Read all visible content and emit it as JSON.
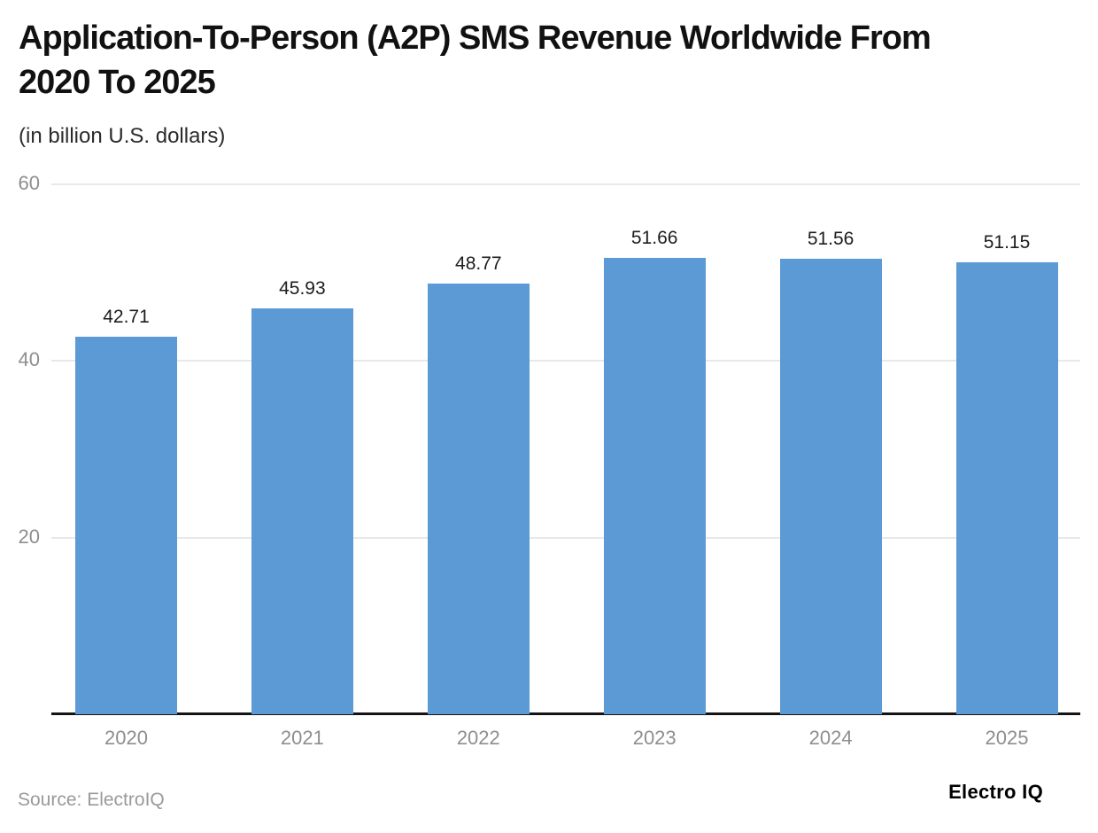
{
  "header": {
    "title_lines": [
      "Application-To-Person (A2P) SMS Revenue Worldwide From",
      "2020 To 2025"
    ]
  },
  "footer": {
    "source": "Source: ElectroIQ",
    "brand": "Electro IQ"
  },
  "chart_data": {
    "type": "bar",
    "title": "Application-To-Person (A2P) SMS Revenue Worldwide From 2020 To 2025",
    "subtitle": "(in billion U.S. dollars)",
    "categories": [
      "2020",
      "2021",
      "2022",
      "2023",
      "2024",
      "2025"
    ],
    "values": [
      42.71,
      45.93,
      48.77,
      51.66,
      51.56,
      51.15
    ],
    "xlabel": "",
    "ylabel": "",
    "ylim": [
      0,
      60
    ],
    "yticks": [
      20,
      40,
      60
    ],
    "grid": true,
    "legend": "none",
    "value_labels": true,
    "value_label_decimals": 2,
    "source": "Source: ElectroIQ",
    "branding": "Electro IQ",
    "colors": {
      "bar": "#5b9ad5",
      "grid": "#e8e8e8",
      "axis": "#141414",
      "tick_text": "#8e8e8e",
      "value_text": "#1d1d1d",
      "title_text": "#111111",
      "source_text": "#9a9a9a",
      "background": "#ffffff"
    }
  }
}
